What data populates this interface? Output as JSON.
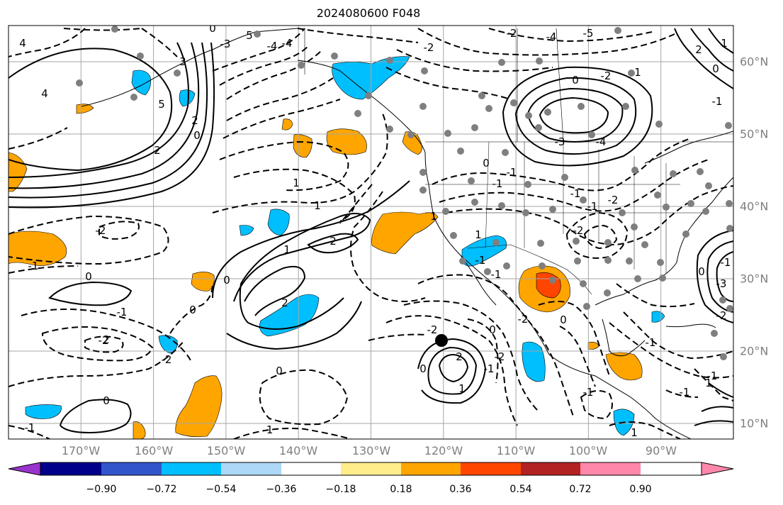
{
  "title": "2024080600 F048",
  "map": {
    "projection": "PlateCarree",
    "lon_range": [
      -180,
      -80
    ],
    "lat_range": [
      7,
      64
    ],
    "lon_labels": [
      "170°W",
      "160°W",
      "150°W",
      "140°W",
      "130°W",
      "120°W",
      "110°W",
      "100°W",
      "90°W"
    ],
    "lat_labels": [
      "60°N",
      "50°N",
      "40°N",
      "30°N",
      "20°N",
      "10°N"
    ],
    "gridline_color": "#a6a6a6",
    "contour_color": "#000000",
    "contour_labels": [
      "4",
      "5",
      "3",
      "2",
      "4",
      "5",
      "-3",
      "-4",
      "-4",
      "-5",
      "-2",
      "-2",
      "-2",
      "0",
      "-4",
      "-1",
      "1",
      "0",
      "-3",
      "-4",
      "1",
      "-1",
      "2",
      "-2",
      "-1",
      "-1",
      "0",
      "-2",
      "2",
      "1",
      "-1",
      "1",
      "0",
      "2",
      "0",
      "-2",
      "-2",
      "-1",
      "0",
      "-1",
      "-1",
      "-2",
      "-1",
      "0",
      "-2",
      "0",
      "-1",
      "1",
      "0",
      "1",
      "-1",
      "-2",
      "2",
      "0",
      "-1",
      "-1",
      "-2",
      "-1",
      "0",
      "-3",
      "-1",
      "-1",
      "-2",
      "1",
      "0",
      "2",
      "1",
      "0",
      "-1",
      "1",
      "0",
      "2",
      "1"
    ],
    "station_color": "#7f7f7f",
    "marker_color": "#000000"
  },
  "colorbar": {
    "ticks": [
      "−0.90",
      "−0.72",
      "−0.54",
      "−0.36",
      "−0.18",
      "0.18",
      "0.36",
      "0.54",
      "0.72",
      "0.90"
    ],
    "colors": [
      "#9933cc",
      "#00008b",
      "#3355cc",
      "#00bfff",
      "#add8f6",
      "#ffffff",
      "#ffec8b",
      "#ffa500",
      "#ff4500",
      "#b22222",
      "#ff88aa"
    ]
  }
}
